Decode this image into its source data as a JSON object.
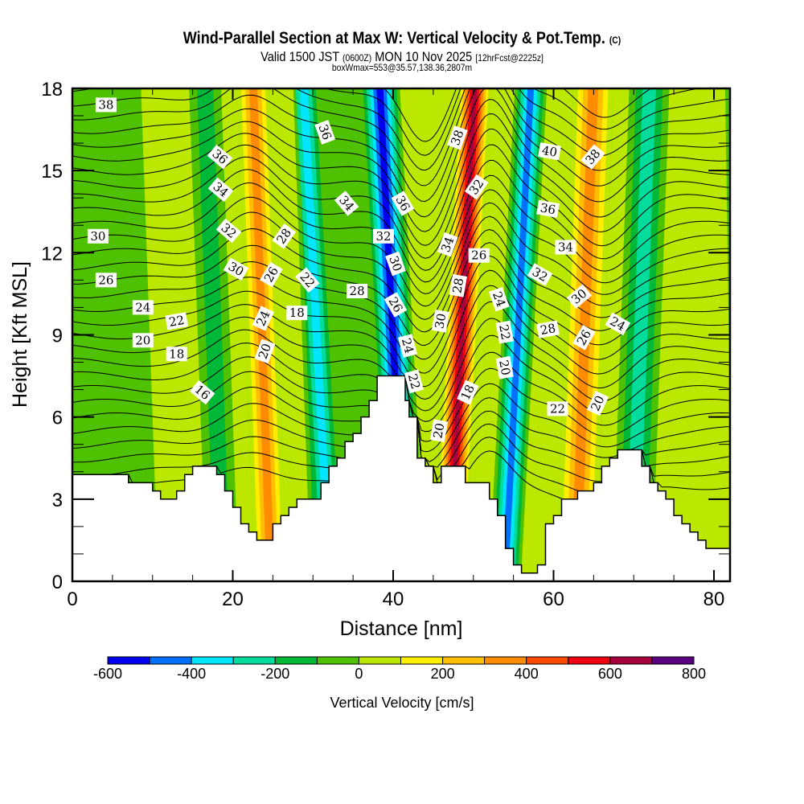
{
  "header": {
    "title": "Wind-Parallel Section at Max W: Vertical Velocity & Pot.Temp.",
    "copyright": "(C)",
    "valid_prefix": "Valid 1500 JST",
    "valid_utc": "(0600Z)",
    "valid_date": "MON 10 Nov 2025",
    "forecast": "[12hrFcst@2225z]",
    "box_info": "boxWmax=553@35.57,138.36,2807m"
  },
  "chart_data": {
    "type": "heatmap",
    "title": "Wind-Parallel Section at Max W: Vertical Velocity & Pot.Temp.",
    "xlabel": "Distance [nm]",
    "ylabel": "Height [Kft MSL]",
    "xlim": [
      0,
      82
    ],
    "ylim": [
      0,
      18
    ],
    "xticks": [
      "0",
      "20",
      "40",
      "60",
      "80"
    ],
    "yticks": [
      "0",
      "3",
      "6",
      "9",
      "12",
      "15",
      "18"
    ],
    "colorbar": {
      "title": "Vertical Velocity [cm/s]",
      "levels": [
        -600,
        -500,
        -400,
        -300,
        -200,
        -100,
        0,
        100,
        200,
        300,
        400,
        500,
        600,
        700,
        800
      ],
      "tick_labels": [
        "-600",
        "-400",
        "-200",
        "0",
        "200",
        "400",
        "600",
        "800"
      ],
      "colors": [
        "#0000f0",
        "#0070ff",
        "#00e6ff",
        "#00dc9c",
        "#00b837",
        "#4ec200",
        "#bce800",
        "#ffee00",
        "#ffbe00",
        "#ff8c00",
        "#ff4a00",
        "#f00010",
        "#a8003c",
        "#5a0080"
      ]
    },
    "velocity_bands": [
      {
        "x": [
          0,
          10
        ],
        "value": -50
      },
      {
        "x": [
          10,
          16
        ],
        "value": 50
      },
      {
        "x": [
          16,
          20
        ],
        "value": -150
      },
      {
        "x": [
          20,
          22
        ],
        "value": 50
      },
      {
        "x": [
          22,
          26
        ],
        "value": 350
      },
      {
        "x": [
          26,
          29
        ],
        "value": 50
      },
      {
        "x": [
          29,
          33
        ],
        "value": -350
      },
      {
        "x": [
          33,
          38
        ],
        "value": -50
      },
      {
        "x": [
          38,
          43
        ],
        "value": -550
      },
      {
        "x": [
          43,
          46
        ],
        "value": 50
      },
      {
        "x": [
          46,
          50
        ],
        "value": 650
      },
      {
        "x": [
          50,
          53
        ],
        "value": 50
      },
      {
        "x": [
          53,
          57
        ],
        "value": -450
      },
      {
        "x": [
          57,
          61
        ],
        "value": 50
      },
      {
        "x": [
          61,
          66
        ],
        "value": 350
      },
      {
        "x": [
          66,
          68
        ],
        "value": 50
      },
      {
        "x": [
          68,
          73
        ],
        "value": -250
      },
      {
        "x": [
          73,
          82
        ],
        "value": 50
      }
    ],
    "terrain_kft": [
      [
        0,
        3.9
      ],
      [
        2,
        3.9
      ],
      [
        4,
        3.9
      ],
      [
        6,
        3.9
      ],
      [
        7,
        3.6
      ],
      [
        9,
        3.6
      ],
      [
        10,
        3.3
      ],
      [
        11,
        3.0
      ],
      [
        12,
        3.0
      ],
      [
        13,
        3.3
      ],
      [
        14,
        3.9
      ],
      [
        15,
        4.2
      ],
      [
        17,
        4.2
      ],
      [
        18,
        3.9
      ],
      [
        19,
        3.3
      ],
      [
        20,
        2.7
      ],
      [
        21,
        2.1
      ],
      [
        22,
        1.8
      ],
      [
        23,
        1.5
      ],
      [
        24,
        1.5
      ],
      [
        25,
        2.1
      ],
      [
        26,
        2.4
      ],
      [
        27,
        2.7
      ],
      [
        28,
        3.0
      ],
      [
        30,
        3.0
      ],
      [
        31,
        3.6
      ],
      [
        32,
        4.2
      ],
      [
        33,
        4.5
      ],
      [
        34,
        5.1
      ],
      [
        35,
        5.4
      ],
      [
        36,
        6.0
      ],
      [
        37,
        6.6
      ],
      [
        38,
        7.5
      ],
      [
        41,
        7.5
      ],
      [
        41.5,
        6.6
      ],
      [
        42,
        6.0
      ],
      [
        43,
        4.5
      ],
      [
        44,
        4.2
      ],
      [
        45,
        3.6
      ],
      [
        46,
        4.2
      ],
      [
        48,
        4.2
      ],
      [
        49,
        3.6
      ],
      [
        51,
        3.6
      ],
      [
        52,
        3.0
      ],
      [
        53,
        2.4
      ],
      [
        54,
        1.2
      ],
      [
        55,
        0.6
      ],
      [
        56,
        0.3
      ],
      [
        57,
        0.3
      ],
      [
        58,
        0.6
      ],
      [
        59,
        2.1
      ],
      [
        60,
        2.4
      ],
      [
        61,
        3.0
      ],
      [
        62,
        3.0
      ],
      [
        63,
        3.3
      ],
      [
        64,
        3.3
      ],
      [
        65,
        3.6
      ],
      [
        66,
        4.2
      ],
      [
        67,
        4.5
      ],
      [
        68,
        4.8
      ],
      [
        69,
        4.8
      ],
      [
        70,
        4.8
      ],
      [
        71,
        4.2
      ],
      [
        72,
        3.6
      ],
      [
        73,
        3.3
      ],
      [
        74,
        3.0
      ],
      [
        75,
        2.4
      ],
      [
        76,
        2.1
      ],
      [
        77,
        1.8
      ],
      [
        78,
        1.5
      ],
      [
        79,
        1.2
      ],
      [
        80,
        1.2
      ],
      [
        81,
        1.2
      ],
      [
        82,
        1.2
      ]
    ],
    "theta_levels": [
      16,
      18,
      20,
      22,
      24,
      26,
      28,
      30,
      32,
      34,
      36,
      38,
      40
    ],
    "contour_labels": [
      {
        "text": "38",
        "x": 4.2,
        "y": 17.4,
        "angle": 0
      },
      {
        "text": "36",
        "x": 18.4,
        "y": 15.5,
        "angle": 40
      },
      {
        "text": "34",
        "x": 18.5,
        "y": 14.3,
        "angle": 40
      },
      {
        "text": "32",
        "x": 19.5,
        "y": 12.8,
        "angle": 40
      },
      {
        "text": "30",
        "x": 20.4,
        "y": 11.4,
        "angle": 30
      },
      {
        "text": "30",
        "x": 3.2,
        "y": 12.6,
        "angle": 0
      },
      {
        "text": "26",
        "x": 4.2,
        "y": 11.0,
        "angle": 0
      },
      {
        "text": "24",
        "x": 8.8,
        "y": 10.0,
        "angle": 0
      },
      {
        "text": "22",
        "x": 13.0,
        "y": 9.5,
        "angle": -10
      },
      {
        "text": "20",
        "x": 8.8,
        "y": 8.8,
        "angle": 0
      },
      {
        "text": "18",
        "x": 13.0,
        "y": 8.3,
        "angle": 0
      },
      {
        "text": "16",
        "x": 16.2,
        "y": 6.9,
        "angle": 40
      },
      {
        "text": "28",
        "x": 26.4,
        "y": 12.6,
        "angle": -55
      },
      {
        "text": "26",
        "x": 24.8,
        "y": 11.2,
        "angle": -60
      },
      {
        "text": "24",
        "x": 23.8,
        "y": 9.6,
        "angle": -65
      },
      {
        "text": "20",
        "x": 24.0,
        "y": 8.4,
        "angle": -70
      },
      {
        "text": "22",
        "x": 29.3,
        "y": 11.0,
        "angle": 50
      },
      {
        "text": "18",
        "x": 28.0,
        "y": 9.8,
        "angle": 0
      },
      {
        "text": "36",
        "x": 31.5,
        "y": 16.4,
        "angle": 70
      },
      {
        "text": "34",
        "x": 34.2,
        "y": 13.8,
        "angle": 50
      },
      {
        "text": "28",
        "x": 35.5,
        "y": 10.6,
        "angle": 0
      },
      {
        "text": "32",
        "x": 38.8,
        "y": 12.6,
        "angle": 0
      },
      {
        "text": "36",
        "x": 41.2,
        "y": 13.8,
        "angle": 60
      },
      {
        "text": "30",
        "x": 40.3,
        "y": 11.6,
        "angle": 70
      },
      {
        "text": "26",
        "x": 40.3,
        "y": 10.1,
        "angle": 60
      },
      {
        "text": "24",
        "x": 41.8,
        "y": 8.6,
        "angle": 75
      },
      {
        "text": "22",
        "x": 42.6,
        "y": 7.3,
        "angle": 75
      },
      {
        "text": "38",
        "x": 48.0,
        "y": 16.2,
        "angle": -70
      },
      {
        "text": "32",
        "x": 50.4,
        "y": 14.4,
        "angle": -55
      },
      {
        "text": "34",
        "x": 46.8,
        "y": 12.3,
        "angle": -70
      },
      {
        "text": "26",
        "x": 50.7,
        "y": 11.9,
        "angle": 0
      },
      {
        "text": "28",
        "x": 48.1,
        "y": 10.8,
        "angle": -80
      },
      {
        "text": "30",
        "x": 45.9,
        "y": 9.5,
        "angle": -80
      },
      {
        "text": "24",
        "x": 53.2,
        "y": 10.3,
        "angle": 70
      },
      {
        "text": "22",
        "x": 53.9,
        "y": 9.1,
        "angle": 80
      },
      {
        "text": "20",
        "x": 53.9,
        "y": 7.8,
        "angle": 80
      },
      {
        "text": "18",
        "x": 49.3,
        "y": 6.9,
        "angle": -65
      },
      {
        "text": "20",
        "x": 45.7,
        "y": 5.5,
        "angle": -80
      },
      {
        "text": "40",
        "x": 59.5,
        "y": 15.7,
        "angle": 10
      },
      {
        "text": "38",
        "x": 64.9,
        "y": 15.5,
        "angle": -50
      },
      {
        "text": "36",
        "x": 59.3,
        "y": 13.6,
        "angle": 10
      },
      {
        "text": "34",
        "x": 61.5,
        "y": 12.2,
        "angle": 0
      },
      {
        "text": "32",
        "x": 58.3,
        "y": 11.2,
        "angle": 30
      },
      {
        "text": "30",
        "x": 63.2,
        "y": 10.4,
        "angle": -40
      },
      {
        "text": "28",
        "x": 59.3,
        "y": 9.2,
        "angle": -10
      },
      {
        "text": "26",
        "x": 63.8,
        "y": 8.9,
        "angle": -60
      },
      {
        "text": "24",
        "x": 68.0,
        "y": 9.4,
        "angle": 30
      },
      {
        "text": "22",
        "x": 60.5,
        "y": 6.3,
        "angle": 0
      },
      {
        "text": "20",
        "x": 65.5,
        "y": 6.5,
        "angle": -65
      }
    ]
  }
}
